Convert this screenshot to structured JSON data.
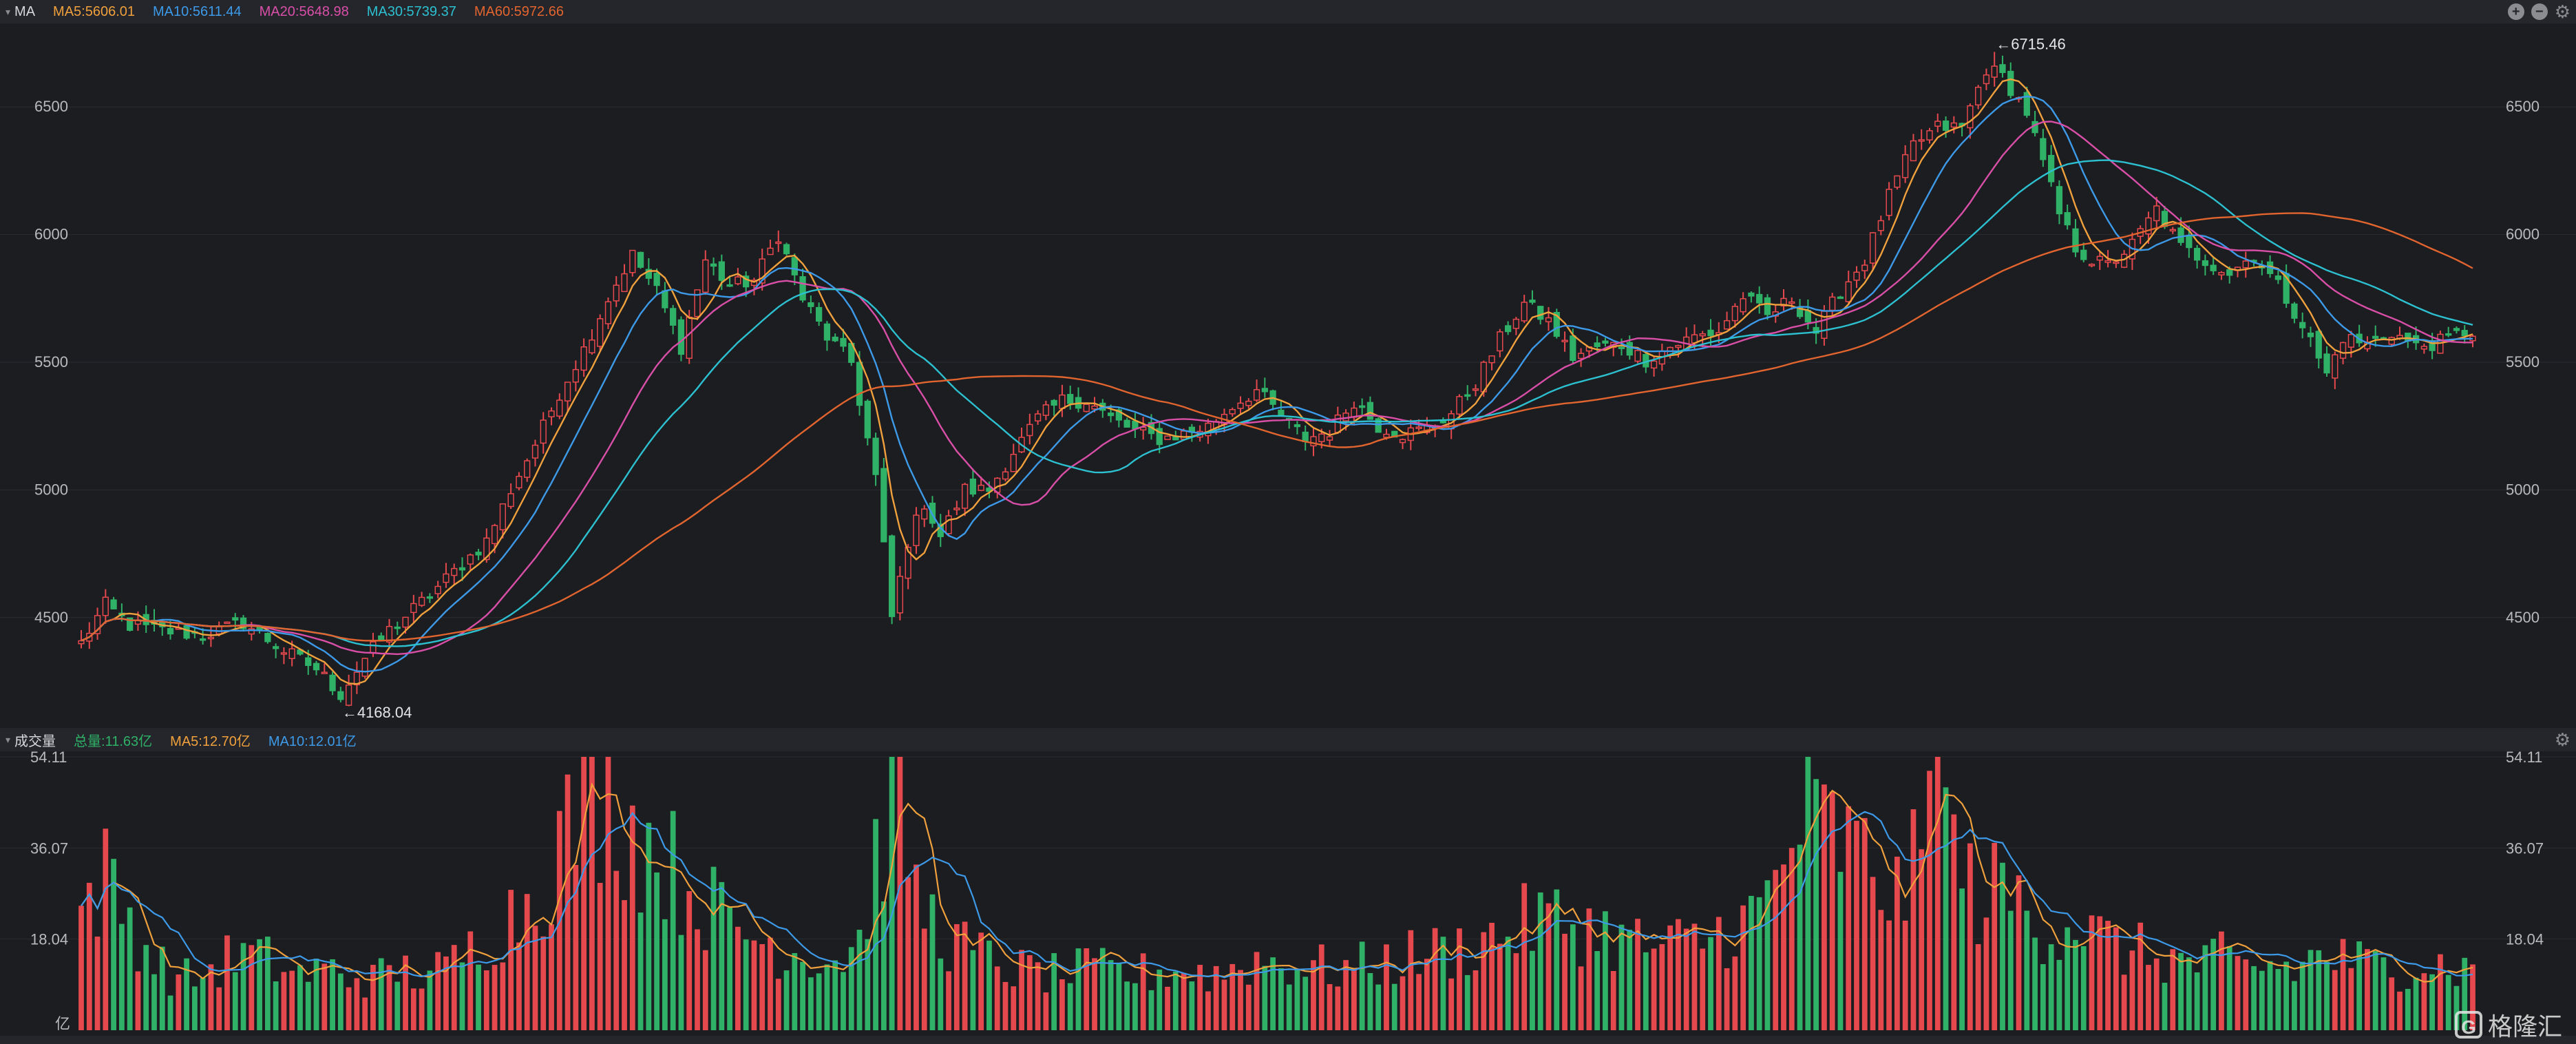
{
  "price_header": {
    "title": "MA",
    "ma5": "MA5:5606.01",
    "ma10": "MA10:5611.44",
    "ma20": "MA20:5648.98",
    "ma30": "MA30:5739.37",
    "ma60": "MA60:5972.66"
  },
  "volume_header": {
    "title": "成交量",
    "total": "总量:11.63亿",
    "ma5": "MA5:12.70亿",
    "ma10": "MA10:12.01亿"
  },
  "colors": {
    "up": "#e5484d",
    "down": "#2fb267",
    "ma5": "#f0a03c",
    "ma10": "#3d9ae8",
    "ma20": "#d94fa8",
    "ma30": "#2cc0d0",
    "ma60": "#e2652f",
    "grid": "#2a2c31",
    "axis_text": "#b9babd",
    "background": "#1c1d21"
  },
  "watermark": {
    "logo": "G",
    "text": "格隆汇"
  },
  "chart_data": [
    {
      "type": "candlestick",
      "title": "MA",
      "ylim": [
        4130,
        6800
      ],
      "yticks": [
        4500,
        5000,
        5500,
        6000,
        6500
      ],
      "ytick_labels": [
        "4500",
        "5000",
        "5500",
        "6000",
        "6500"
      ],
      "annotations": [
        {
          "label": "←4168.04",
          "index": 32,
          "value": 4168.04
        },
        {
          "label": "←6715.46",
          "index": 236,
          "value": 6715.46
        }
      ],
      "series_names": [
        "MA5",
        "MA10",
        "MA20",
        "MA30",
        "MA60"
      ],
      "last_values": {
        "MA5": 5606.01,
        "MA10": 5611.44,
        "MA20": 5648.98,
        "MA30": 5739.37,
        "MA60": 5972.66
      },
      "close_path": [
        [
          0,
          4400
        ],
        [
          3,
          4550
        ],
        [
          6,
          4470
        ],
        [
          10,
          4450
        ],
        [
          15,
          4430
        ],
        [
          20,
          4480
        ],
        [
          25,
          4370
        ],
        [
          29,
          4300
        ],
        [
          32,
          4200
        ],
        [
          35,
          4340
        ],
        [
          38,
          4450
        ],
        [
          42,
          4560
        ],
        [
          46,
          4680
        ],
        [
          50,
          4800
        ],
        [
          53,
          5000
        ],
        [
          56,
          5180
        ],
        [
          59,
          5380
        ],
        [
          62,
          5550
        ],
        [
          65,
          5750
        ],
        [
          68,
          5920
        ],
        [
          71,
          5780
        ],
        [
          74,
          5560
        ],
        [
          77,
          5900
        ],
        [
          80,
          5800
        ],
        [
          83,
          5820
        ],
        [
          86,
          6000
        ],
        [
          89,
          5750
        ],
        [
          92,
          5600
        ],
        [
          95,
          5500
        ],
        [
          98,
          5050
        ],
        [
          100,
          4500
        ],
        [
          102,
          4800
        ],
        [
          104,
          4950
        ],
        [
          106,
          4820
        ],
        [
          109,
          5000
        ],
        [
          112,
          5000
        ],
        [
          115,
          5150
        ],
        [
          118,
          5280
        ],
        [
          121,
          5350
        ],
        [
          124,
          5350
        ],
        [
          127,
          5280
        ],
        [
          130,
          5230
        ],
        [
          133,
          5200
        ],
        [
          136,
          5220
        ],
        [
          139,
          5250
        ],
        [
          142,
          5330
        ],
        [
          145,
          5390
        ],
        [
          148,
          5290
        ],
        [
          151,
          5200
        ],
        [
          154,
          5230
        ],
        [
          157,
          5350
        ],
        [
          160,
          5250
        ],
        [
          163,
          5220
        ],
        [
          166,
          5240
        ],
        [
          169,
          5300
        ],
        [
          172,
          5420
        ],
        [
          175,
          5590
        ],
        [
          178,
          5730
        ],
        [
          181,
          5660
        ],
        [
          184,
          5520
        ],
        [
          187,
          5560
        ],
        [
          190,
          5570
        ],
        [
          193,
          5510
        ],
        [
          196,
          5560
        ],
        [
          199,
          5600
        ],
        [
          202,
          5620
        ],
        [
          205,
          5760
        ],
        [
          208,
          5680
        ],
        [
          211,
          5750
        ],
        [
          214,
          5620
        ],
        [
          217,
          5780
        ],
        [
          220,
          5900
        ],
        [
          223,
          6150
        ],
        [
          226,
          6350
        ],
        [
          229,
          6420
        ],
        [
          232,
          6420
        ],
        [
          235,
          6650
        ],
        [
          237,
          6620
        ],
        [
          240,
          6480
        ],
        [
          242,
          6280
        ],
        [
          244,
          6080
        ],
        [
          246,
          5950
        ],
        [
          248,
          5900
        ],
        [
          250,
          5880
        ],
        [
          253,
          5960
        ],
        [
          256,
          6100
        ],
        [
          259,
          5950
        ],
        [
          262,
          5900
        ],
        [
          265,
          5850
        ],
        [
          268,
          5920
        ],
        [
          271,
          5800
        ],
        [
          274,
          5650
        ],
        [
          277,
          5450
        ],
        [
          279,
          5600
        ],
        [
          282,
          5570
        ],
        [
          285,
          5620
        ],
        [
          288,
          5560
        ],
        [
          291,
          5580
        ],
        [
          294,
          5620
        ]
      ]
    },
    {
      "type": "bar",
      "title": "成交量",
      "unit": "亿",
      "ylim": [
        0,
        54.11
      ],
      "yticks": [
        18.04,
        36.07,
        54.11
      ],
      "ytick_labels": [
        "18.04",
        "36.07",
        "54.11"
      ],
      "last_values": {
        "total": 11.63,
        "MA5": 12.7,
        "MA10": 12.01
      },
      "volume_path": [
        [
          0,
          24
        ],
        [
          3,
          30
        ],
        [
          6,
          22
        ],
        [
          9,
          14
        ],
        [
          12,
          10
        ],
        [
          15,
          11
        ],
        [
          18,
          14
        ],
        [
          21,
          15
        ],
        [
          24,
          13
        ],
        [
          27,
          11
        ],
        [
          30,
          12
        ],
        [
          33,
          11
        ],
        [
          36,
          10
        ],
        [
          39,
          12
        ],
        [
          42,
          11
        ],
        [
          45,
          12
        ],
        [
          48,
          16
        ],
        [
          51,
          20
        ],
        [
          54,
          24
        ],
        [
          57,
          30
        ],
        [
          60,
          40
        ],
        [
          63,
          47
        ],
        [
          66,
          44
        ],
        [
          69,
          38
        ],
        [
          72,
          34
        ],
        [
          75,
          28
        ],
        [
          78,
          24
        ],
        [
          81,
          20
        ],
        [
          84,
          18
        ],
        [
          87,
          16
        ],
        [
          90,
          15
        ],
        [
          93,
          14
        ],
        [
          96,
          18
        ],
        [
          99,
          40
        ],
        [
          101,
          50
        ],
        [
          103,
          26
        ],
        [
          106,
          20
        ],
        [
          109,
          16
        ],
        [
          112,
          14
        ],
        [
          115,
          12
        ],
        [
          120,
          11
        ],
        [
          125,
          12
        ],
        [
          130,
          11
        ],
        [
          135,
          12
        ],
        [
          140,
          11
        ],
        [
          145,
          14
        ],
        [
          150,
          13
        ],
        [
          155,
          12
        ],
        [
          160,
          13
        ],
        [
          165,
          15
        ],
        [
          170,
          16
        ],
        [
          175,
          19
        ],
        [
          180,
          22
        ],
        [
          185,
          21
        ],
        [
          190,
          18
        ],
        [
          195,
          16
        ],
        [
          200,
          18
        ],
        [
          203,
          20
        ],
        [
          206,
          22
        ],
        [
          209,
          28
        ],
        [
          212,
          42
        ],
        [
          215,
          40
        ],
        [
          218,
          36
        ],
        [
          221,
          32
        ],
        [
          224,
          26
        ],
        [
          227,
          34
        ],
        [
          229,
          52
        ],
        [
          231,
          34
        ],
        [
          234,
          26
        ],
        [
          237,
          28
        ],
        [
          240,
          24
        ],
        [
          243,
          20
        ],
        [
          246,
          22
        ],
        [
          249,
          18
        ],
        [
          252,
          16
        ],
        [
          255,
          15
        ],
        [
          258,
          14
        ],
        [
          261,
          13
        ],
        [
          264,
          14
        ],
        [
          267,
          12
        ],
        [
          270,
          13
        ],
        [
          273,
          12
        ],
        [
          276,
          15
        ],
        [
          279,
          14
        ],
        [
          282,
          13
        ],
        [
          285,
          12
        ],
        [
          288,
          14
        ],
        [
          291,
          13
        ],
        [
          294,
          12
        ]
      ]
    }
  ]
}
